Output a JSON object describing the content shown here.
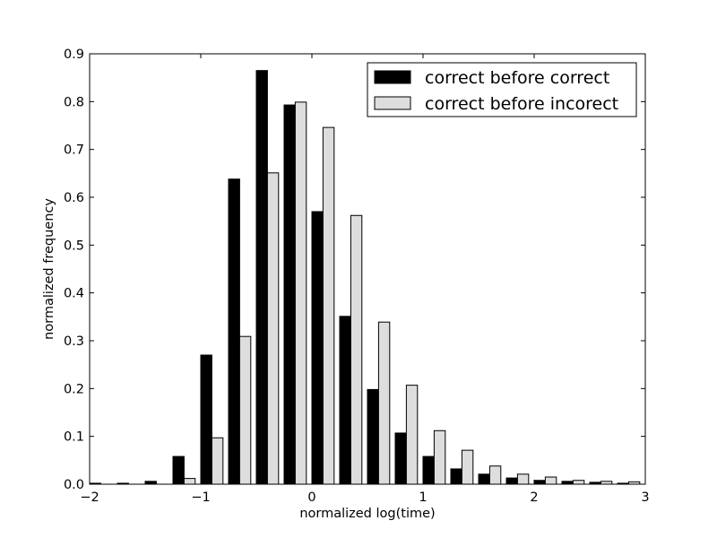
{
  "chart_data": {
    "type": "bar",
    "xlabel": "normalized log(time)",
    "ylabel": "normalized frequency",
    "xlim": [
      -2,
      3
    ],
    "ylim": [
      0,
      0.9
    ],
    "xticks": [
      -2,
      -1,
      0,
      1,
      2,
      3
    ],
    "xtick_labels": [
      "−2",
      "−1",
      "0",
      "1",
      "2",
      "3"
    ],
    "yticks": [
      0,
      0.1,
      0.2,
      0.3,
      0.4,
      0.5,
      0.6,
      0.7,
      0.8,
      0.9
    ],
    "ytick_labels": [
      "0.0",
      "0.1",
      "0.2",
      "0.3",
      "0.4",
      "0.5",
      "0.6",
      "0.7",
      "0.8",
      "0.9"
    ],
    "bin_width": 0.25,
    "bin_starts": [
      -2.0,
      -1.75,
      -1.5,
      -1.25,
      -1.0,
      -0.75,
      -0.5,
      -0.25,
      0.0,
      0.25,
      0.5,
      0.75,
      1.0,
      1.25,
      1.5,
      1.75,
      2.0,
      2.25,
      2.5,
      2.75
    ],
    "legend_position": "top-right",
    "grid": false,
    "series": [
      {
        "name": "correct before correct",
        "color": "#000000",
        "values": [
          0.002,
          0.002,
          0.006,
          0.058,
          0.27,
          0.638,
          0.865,
          0.793,
          0.57,
          0.351,
          0.198,
          0.107,
          0.058,
          0.032,
          0.021,
          0.013,
          0.008,
          0.006,
          0.004,
          0.002
        ]
      },
      {
        "name": "correct before incorect",
        "color": "#dddddd",
        "values": [
          0.0,
          0.0,
          0.0,
          0.012,
          0.097,
          0.309,
          0.651,
          0.799,
          0.746,
          0.562,
          0.339,
          0.207,
          0.112,
          0.071,
          0.038,
          0.021,
          0.015,
          0.008,
          0.006,
          0.005
        ]
      }
    ]
  }
}
